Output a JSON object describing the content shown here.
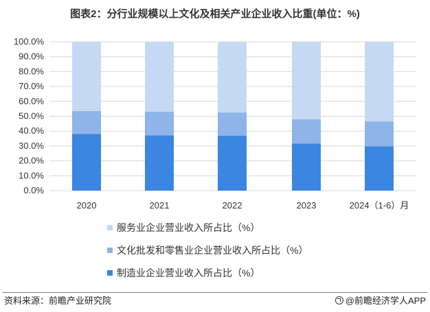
{
  "title": "图表2：分行业规模以上文化及相关产业企业收入比重(单位：%)",
  "footer": {
    "source": "资料来源：前瞻产业研究院",
    "brand": "@前瞻经济学人APP"
  },
  "colors": {
    "services": "#c6d9f3",
    "wholesale_retail": "#8eb4e9",
    "manufacturing": "#3a86e0",
    "grid": "#d9d9d9"
  },
  "chart_data": {
    "type": "bar",
    "stacked": true,
    "percent_stacked": true,
    "categories": [
      "2020",
      "2021",
      "2022",
      "2023",
      "2024（1-6）月"
    ],
    "series": [
      {
        "name": "制造业企业营业收入所占比（%）",
        "values": [
          38.0,
          37.2,
          37.0,
          31.7,
          29.8
        ]
      },
      {
        "name": "文化批发和零售业企业营业收入所占比（%）",
        "values": [
          15.5,
          15.8,
          15.5,
          16.3,
          16.7
        ]
      },
      {
        "name": "服务业企业营业收入所占比（%）",
        "values": [
          46.5,
          47.0,
          47.5,
          52.0,
          53.5
        ]
      }
    ],
    "ylim": [
      0,
      100
    ],
    "yticks": [
      "0.0%",
      "10.0%",
      "20.0%",
      "30.0%",
      "40.0%",
      "50.0%",
      "60.0%",
      "70.0%",
      "80.0%",
      "90.0%",
      "100.0%"
    ],
    "grid": true,
    "legend_position": "bottom",
    "legend_order": [
      "服务业企业营业收入所占比（%）",
      "文化批发和零售业企业营业收入所占比（%）",
      "制造业企业营业收入所占比（%）"
    ]
  }
}
